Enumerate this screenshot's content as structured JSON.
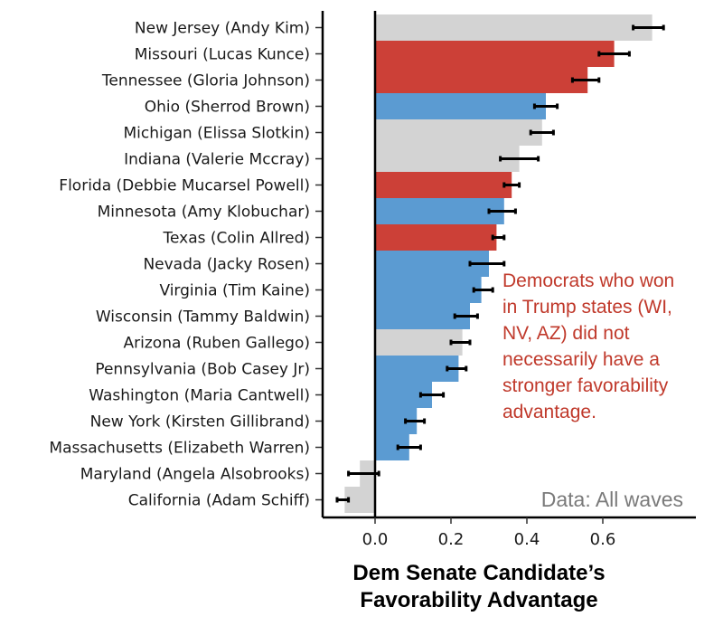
{
  "chart_data": {
    "type": "bar",
    "orientation": "horizontal",
    "xlabel_lines": [
      "Dem Senate Candidate’s",
      "Favorability Advantage"
    ],
    "xlim": [
      -0.15,
      0.8
    ],
    "x_ticks": [
      0.0,
      0.2,
      0.4,
      0.6
    ],
    "x_tick_labels": [
      "0.0",
      "0.2",
      "0.4",
      "0.6"
    ],
    "grid": false,
    "legend": "none",
    "colors": {
      "red": "#cc4037",
      "blue": "#5b9bd2",
      "grey": "#d3d3d3",
      "annotation": "#c0392b",
      "note": "#7a7a7a"
    },
    "categories": [
      "New Jersey (Andy Kim)",
      "Missouri (Lucas Kunce)",
      "Tennessee (Gloria Johnson)",
      "Ohio (Sherrod Brown)",
      "Michigan (Elissa Slotkin)",
      "Indiana (Valerie Mccray)",
      "Florida (Debbie Mucarsel Powell)",
      "Minnesota (Amy Klobuchar)",
      "Texas (Colin Allred)",
      "Nevada (Jacky Rosen)",
      "Virginia (Tim Kaine)",
      "Wisconsin (Tammy Baldwin)",
      "Arizona (Ruben Gallego)",
      "Pennsylvania (Bob Casey Jr)",
      "Washington (Maria Cantwell)",
      "New York (Kirsten Gillibrand)",
      "Massachusetts (Elizabeth Warren)",
      "Maryland (Angela Alsobrooks)",
      "California (Adam Schiff)"
    ],
    "values": [
      0.73,
      0.63,
      0.56,
      0.45,
      0.44,
      0.38,
      0.36,
      0.34,
      0.32,
      0.3,
      0.28,
      0.25,
      0.23,
      0.22,
      0.15,
      0.11,
      0.09,
      -0.04,
      -0.08
    ],
    "bar_colors": [
      "grey",
      "red",
      "red",
      "blue",
      "grey",
      "grey",
      "red",
      "blue",
      "red",
      "blue",
      "blue",
      "blue",
      "grey",
      "blue",
      "blue",
      "blue",
      "blue",
      "grey",
      "grey"
    ],
    "error_low": [
      0.68,
      0.59,
      0.52,
      0.42,
      0.41,
      0.33,
      0.34,
      0.3,
      0.31,
      0.25,
      0.26,
      0.21,
      0.2,
      0.19,
      0.12,
      0.08,
      0.06,
      -0.07,
      -0.1
    ],
    "error_high": [
      0.76,
      0.67,
      0.59,
      0.48,
      0.47,
      0.43,
      0.38,
      0.37,
      0.34,
      0.34,
      0.31,
      0.27,
      0.25,
      0.24,
      0.18,
      0.13,
      0.12,
      0.01,
      -0.07
    ],
    "annotation": [
      "Democrats who won",
      "in Trump states  (WI,",
      "NV, AZ) did not",
      "necessarily have a",
      "stronger favorability",
      "advantage."
    ],
    "source_note": "Data: All waves"
  }
}
